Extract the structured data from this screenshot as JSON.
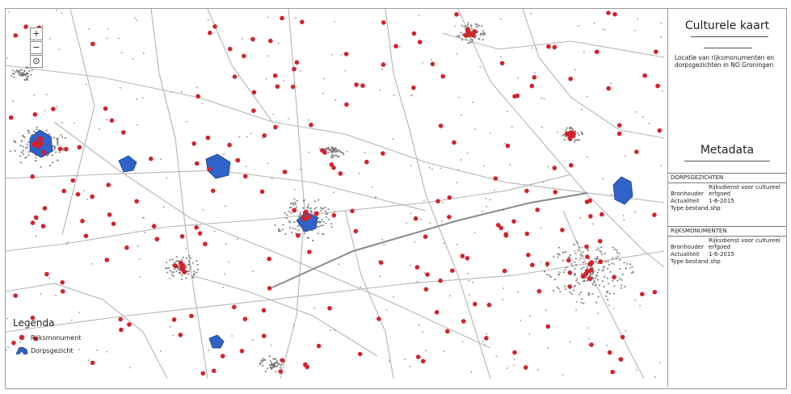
{
  "sidebar": {
    "title": "Culturele kaart",
    "description": "Locatie van rijksmonumenten en dorpsgezichten in NO Groningen",
    "metadata_title": "Metadata",
    "sections": [
      {
        "header": "DORPSGEZICHTEN",
        "rows": [
          {
            "key": "Bronhouder",
            "value": "Rijksdienst voor cultureel erfgoed"
          },
          {
            "key": "Actualiteit",
            "value": "1-6-2015"
          },
          {
            "key": "Type bestand",
            "value": ".shp"
          }
        ]
      },
      {
        "header": "RIJKSMONUMENTEN",
        "rows": [
          {
            "key": "Bronhouder",
            "value": "Rijksdienst voor cultureel erfgoed"
          },
          {
            "key": "Actualiteit",
            "value": "1-6-2015"
          },
          {
            "key": "Type bestand",
            "value": ".shp"
          }
        ]
      }
    ]
  },
  "legend": {
    "title": "Legenda",
    "items": [
      {
        "label": "Rijksmonument",
        "symbol": "red-dot-icon",
        "color": "#d2232a"
      },
      {
        "label": "Dorpsgezicht",
        "symbol": "blue-polygon-icon",
        "color": "#2f63c9"
      }
    ]
  },
  "map_controls": {
    "zoom_in": "+",
    "zoom_out": "−",
    "locate": "⊙"
  },
  "colors": {
    "monument": "#d2232a",
    "dorpsgezicht": "#2f63c9",
    "building": "#777777",
    "road": "#b4b4b4"
  }
}
